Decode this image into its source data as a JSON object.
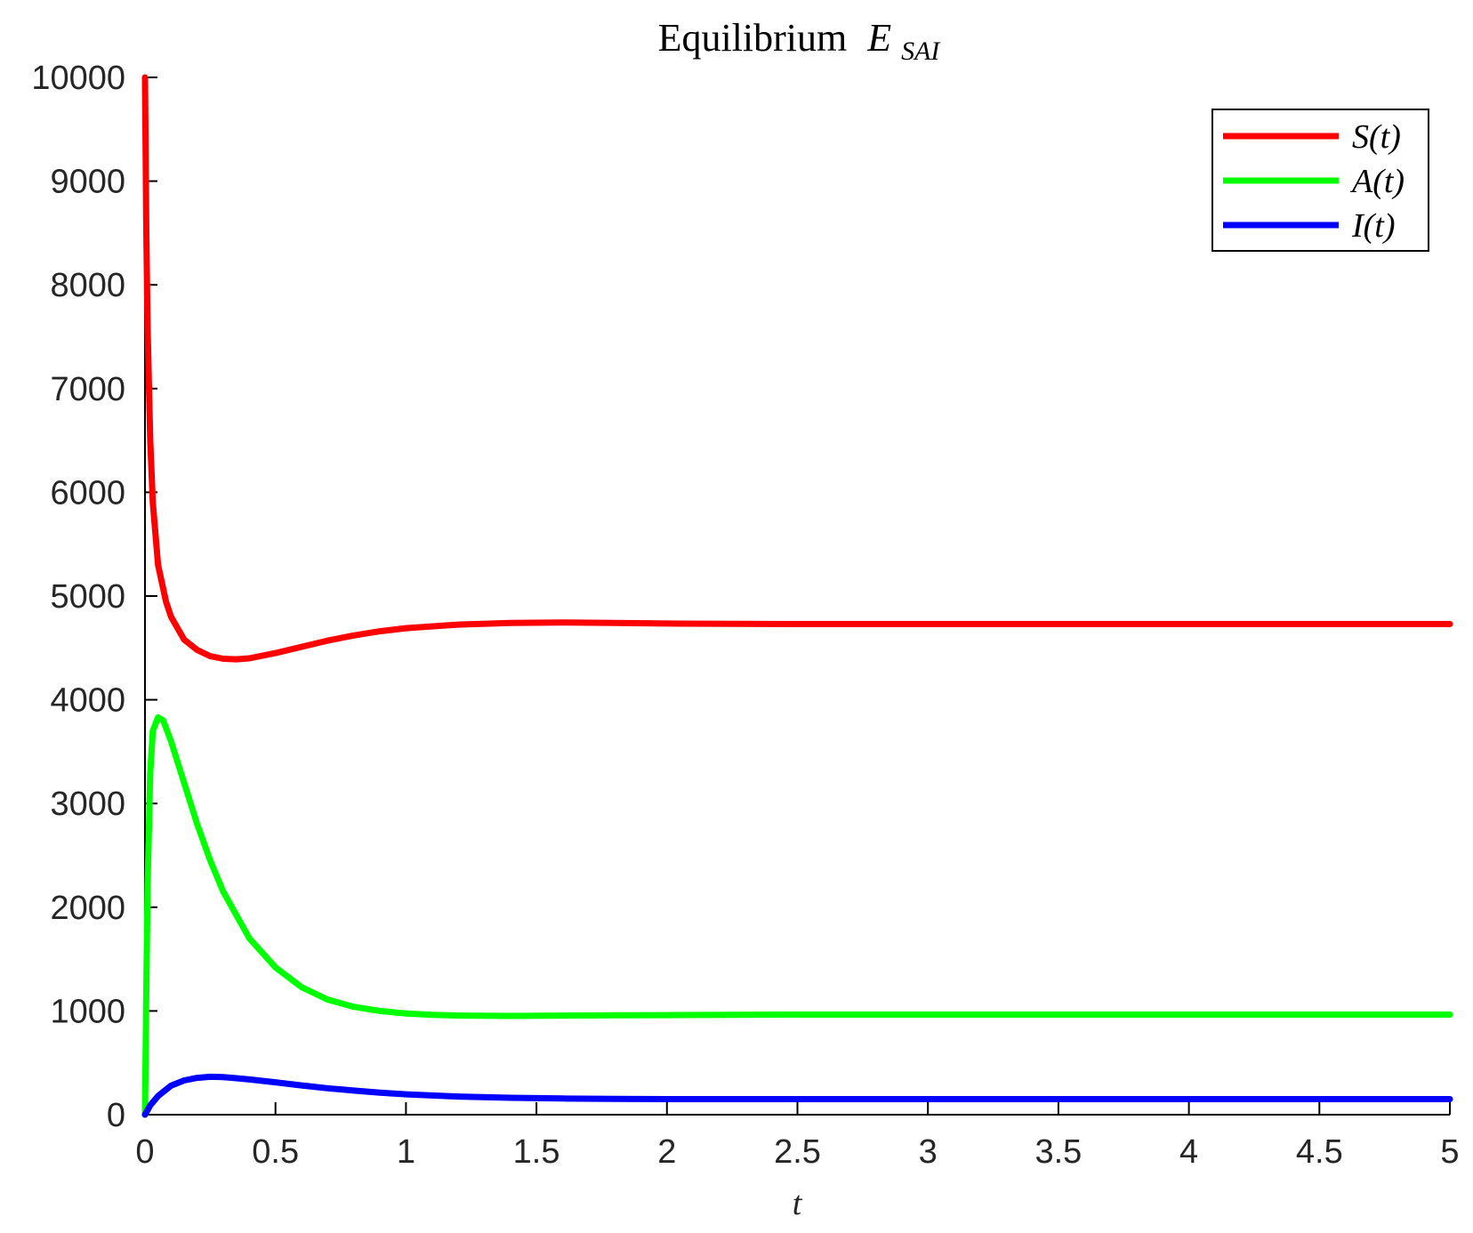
{
  "chart_data": {
    "type": "line",
    "title": "Equilibrium",
    "title_math": "E",
    "title_subscript": "SAI",
    "xlabel": "t",
    "ylabel": "",
    "xlim": [
      0,
      5
    ],
    "ylim": [
      0,
      10000
    ],
    "xticks": [
      "0",
      "0.5",
      "1",
      "1.5",
      "2",
      "2.5",
      "3",
      "3.5",
      "4",
      "4.5",
      "5"
    ],
    "yticks": [
      "0",
      "1000",
      "2000",
      "3000",
      "4000",
      "5000",
      "6000",
      "7000",
      "8000",
      "9000",
      "10000"
    ],
    "grid": false,
    "legend_position": "top-right",
    "legend": [
      "S(t)",
      "A(t)",
      "I(t)"
    ],
    "series": [
      {
        "name": "S(t)",
        "color": "#ff0000",
        "x": [
          0,
          0.005,
          0.01,
          0.02,
          0.03,
          0.05,
          0.08,
          0.1,
          0.15,
          0.2,
          0.25,
          0.3,
          0.35,
          0.4,
          0.5,
          0.6,
          0.7,
          0.8,
          0.9,
          1.0,
          1.2,
          1.4,
          1.6,
          1.8,
          2.0,
          2.5,
          3.0,
          3.5,
          4.0,
          4.5,
          5.0
        ],
        "y": [
          10000,
          8500,
          7600,
          6500,
          5900,
          5300,
          4950,
          4800,
          4580,
          4480,
          4420,
          4395,
          4390,
          4400,
          4450,
          4510,
          4570,
          4620,
          4660,
          4690,
          4725,
          4740,
          4745,
          4740,
          4735,
          4730,
          4730,
          4730,
          4730,
          4730,
          4730
        ]
      },
      {
        "name": "A(t)",
        "color": "#00ff00",
        "x": [
          0,
          0.005,
          0.01,
          0.02,
          0.03,
          0.05,
          0.07,
          0.1,
          0.15,
          0.2,
          0.25,
          0.3,
          0.4,
          0.5,
          0.6,
          0.7,
          0.8,
          0.9,
          1.0,
          1.1,
          1.2,
          1.4,
          1.6,
          1.8,
          2.0,
          2.5,
          3.0,
          3.5,
          4.0,
          4.5,
          5.0
        ],
        "y": [
          0,
          1200,
          2200,
          3300,
          3700,
          3830,
          3800,
          3600,
          3200,
          2800,
          2450,
          2150,
          1700,
          1420,
          1230,
          1110,
          1040,
          1000,
          975,
          962,
          955,
          952,
          955,
          958,
          960,
          965,
          965,
          965,
          965,
          965,
          965
        ]
      },
      {
        "name": "I(t)",
        "color": "#0000ff",
        "x": [
          0,
          0.02,
          0.05,
          0.1,
          0.15,
          0.2,
          0.25,
          0.3,
          0.35,
          0.4,
          0.5,
          0.6,
          0.7,
          0.8,
          0.9,
          1.0,
          1.2,
          1.4,
          1.6,
          1.8,
          2.0,
          2.5,
          3.0,
          3.5,
          4.0,
          4.5,
          5.0
        ],
        "y": [
          0,
          90,
          180,
          280,
          330,
          355,
          365,
          362,
          352,
          340,
          312,
          282,
          255,
          232,
          212,
          196,
          175,
          163,
          156,
          153,
          150,
          150,
          150,
          150,
          150,
          150,
          150
        ]
      }
    ]
  }
}
